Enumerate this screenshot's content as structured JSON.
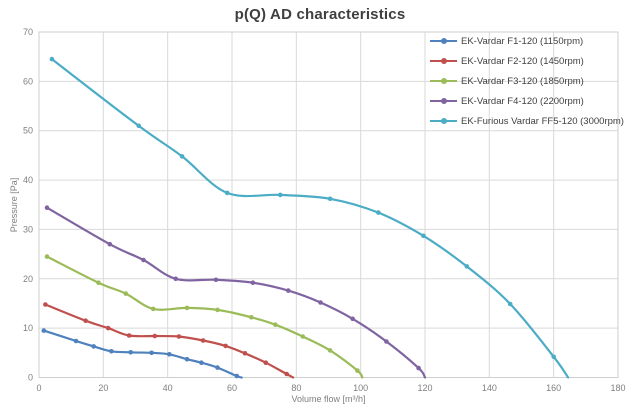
{
  "chart_data": {
    "type": "line",
    "title": "p(Q) AD characteristics",
    "xlabel": "Volume flow [m³/h]",
    "ylabel": "Pressure [Pa]",
    "xlim": [
      0,
      180
    ],
    "ylim": [
      0,
      70
    ],
    "x_ticks": [
      0,
      20,
      40,
      60,
      80,
      100,
      120,
      140,
      160,
      180
    ],
    "y_ticks": [
      0,
      10,
      20,
      30,
      40,
      50,
      60,
      70
    ],
    "grid": true,
    "legend_position": "top-right-inside",
    "gridline_color": "#D9D9D9",
    "axis_text_color": "#7F7F7F",
    "title_color": "#3F3F3F",
    "series": [
      {
        "name": "EK-Vardar F1-120 (1150rpm)",
        "color": "#4F81BD",
        "points": [
          [
            1.5,
            9.5
          ],
          [
            11.5,
            7.4
          ],
          [
            17,
            6.3
          ],
          [
            22.5,
            5.3
          ],
          [
            28.5,
            5.1
          ],
          [
            35,
            5.0
          ],
          [
            40.5,
            4.7
          ],
          [
            46,
            3.7
          ],
          [
            50.5,
            3.0
          ],
          [
            55.5,
            2.0
          ],
          [
            61.5,
            0.3
          ],
          [
            63,
            0
          ]
        ]
      },
      {
        "name": "EK-Vardar F2-120 (1450rpm)",
        "color": "#C0504D",
        "points": [
          [
            2,
            14.8
          ],
          [
            14.5,
            11.5
          ],
          [
            21.5,
            10.0
          ],
          [
            28,
            8.5
          ],
          [
            36,
            8.4
          ],
          [
            43.5,
            8.3
          ],
          [
            51,
            7.5
          ],
          [
            58,
            6.4
          ],
          [
            64,
            4.9
          ],
          [
            70.5,
            3.0
          ],
          [
            77,
            0.7
          ],
          [
            79,
            0
          ]
        ]
      },
      {
        "name": "EK-Vardar F3-120 (1850rpm)",
        "color": "#9BBB59",
        "points": [
          [
            2.5,
            24.5
          ],
          [
            18.5,
            19.2
          ],
          [
            27,
            17.0
          ],
          [
            35.5,
            13.9
          ],
          [
            46,
            14.1
          ],
          [
            55.5,
            13.7
          ],
          [
            66,
            12.2
          ],
          [
            73.5,
            10.7
          ],
          [
            82,
            8.3
          ],
          [
            90.5,
            5.5
          ],
          [
            99,
            1.4
          ],
          [
            100.5,
            0
          ]
        ]
      },
      {
        "name": "EK-Vardar F4-120 (2200rpm)",
        "color": "#8064A2",
        "points": [
          [
            2.5,
            34.4
          ],
          [
            22,
            27.0
          ],
          [
            32.5,
            23.8
          ],
          [
            42.5,
            20.0
          ],
          [
            55,
            19.8
          ],
          [
            66.5,
            19.2
          ],
          [
            77.5,
            17.6
          ],
          [
            87.5,
            15.2
          ],
          [
            97.5,
            11.9
          ],
          [
            108,
            7.3
          ],
          [
            118,
            1.9
          ],
          [
            120,
            0
          ]
        ]
      },
      {
        "name": "EK-Furious Vardar FF5-120 (3000rpm)",
        "color": "#4BACC6",
        "points": [
          [
            4,
            64.5
          ],
          [
            31,
            51.0
          ],
          [
            44.5,
            44.8
          ],
          [
            58.5,
            37.4
          ],
          [
            75,
            37.0
          ],
          [
            90.5,
            36.2
          ],
          [
            105.5,
            33.4
          ],
          [
            119.5,
            28.7
          ],
          [
            133,
            22.5
          ],
          [
            146.5,
            14.9
          ],
          [
            160,
            4.2
          ],
          [
            164.5,
            0
          ]
        ]
      }
    ]
  }
}
